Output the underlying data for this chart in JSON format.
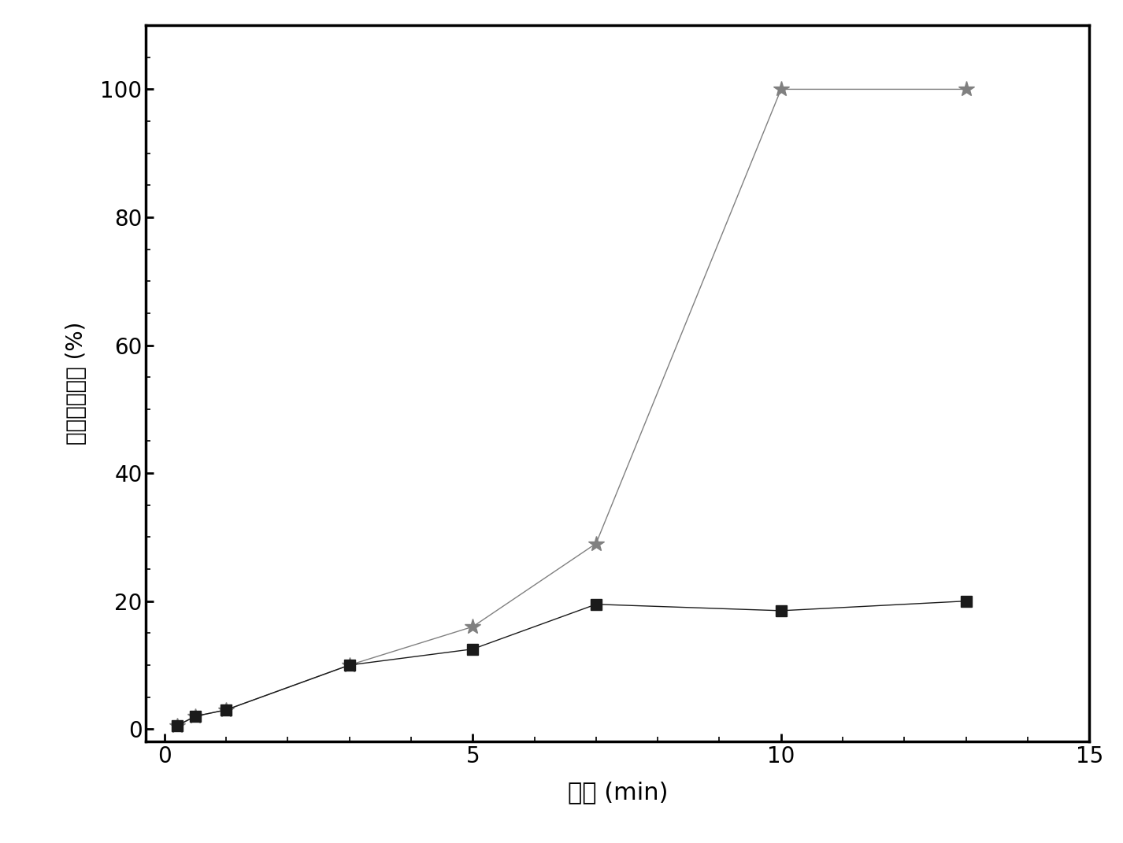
{
  "series1_x": [
    0.2,
    0.5,
    1.0,
    3.0,
    5.0,
    7.0,
    10.0,
    13.0
  ],
  "series1_y": [
    0.5,
    2.0,
    3.0,
    10.0,
    16.0,
    29.0,
    100.0,
    100.0
  ],
  "series2_x": [
    0.2,
    0.5,
    1.0,
    3.0,
    5.0,
    7.0,
    10.0,
    13.0
  ],
  "series2_y": [
    0.5,
    2.0,
    3.0,
    10.0,
    12.5,
    19.5,
    18.5,
    20.0
  ],
  "series1_color": "#808080",
  "series2_color": "#1a1a1a",
  "series1_marker": "o",
  "series2_marker": "s",
  "series1_markersize": 11,
  "series2_markersize": 10,
  "line_style": "-",
  "line_width": 1.0,
  "xlabel": "时间 (min)",
  "ylabel": "瞇基苯去除率 (%)",
  "xlim": [
    -0.3,
    15
  ],
  "ylim": [
    -2,
    110
  ],
  "xticks": [
    0,
    5,
    10,
    15
  ],
  "yticks": [
    0,
    20,
    40,
    60,
    80,
    100
  ],
  "background_color": "#ffffff",
  "xlabel_fontsize": 22,
  "ylabel_fontsize": 20,
  "tick_fontsize": 20,
  "axis_linewidth": 2.5
}
